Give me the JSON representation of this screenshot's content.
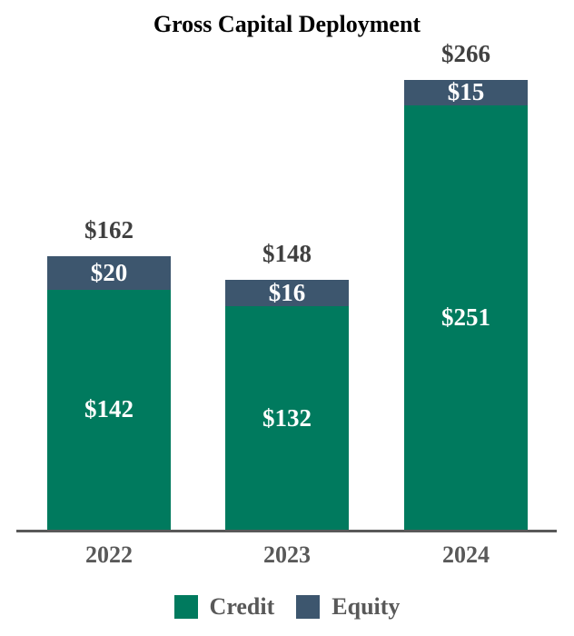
{
  "title": "Gross Capital Deployment",
  "colors": {
    "credit": "#007A5E",
    "equity": "#3D566E",
    "axis": "#595959",
    "title_text": "#000000",
    "total_label_text": "#404040",
    "tick_label_text": "#595959",
    "segment_label_text": "#FFFFFF",
    "background": "#FFFFFF"
  },
  "legend": {
    "items": [
      {
        "label": "Credit",
        "color": "#007A5E"
      },
      {
        "label": "Equity",
        "color": "#3D566E"
      }
    ]
  },
  "chart_data": {
    "type": "bar",
    "stacked": true,
    "title": "Gross Capital Deployment",
    "categories": [
      "2022",
      "2023",
      "2024"
    ],
    "series": [
      {
        "name": "Credit",
        "color": "#007A5E",
        "values": [
          142,
          132,
          251
        ],
        "labels": [
          "$142",
          "$132",
          "$251"
        ]
      },
      {
        "name": "Equity",
        "color": "#3D566E",
        "values": [
          20,
          16,
          15
        ],
        "labels": [
          "$20",
          "$16",
          "$15"
        ]
      }
    ],
    "totals": [
      162,
      148,
      266
    ],
    "total_labels": [
      "$162",
      "$148",
      "$266"
    ],
    "xlabel": "",
    "ylabel": "",
    "ylim": [
      0,
      280
    ],
    "grid": false,
    "legend_position": "bottom",
    "value_unit": "USD millions (as displayed: $ prefix)"
  }
}
